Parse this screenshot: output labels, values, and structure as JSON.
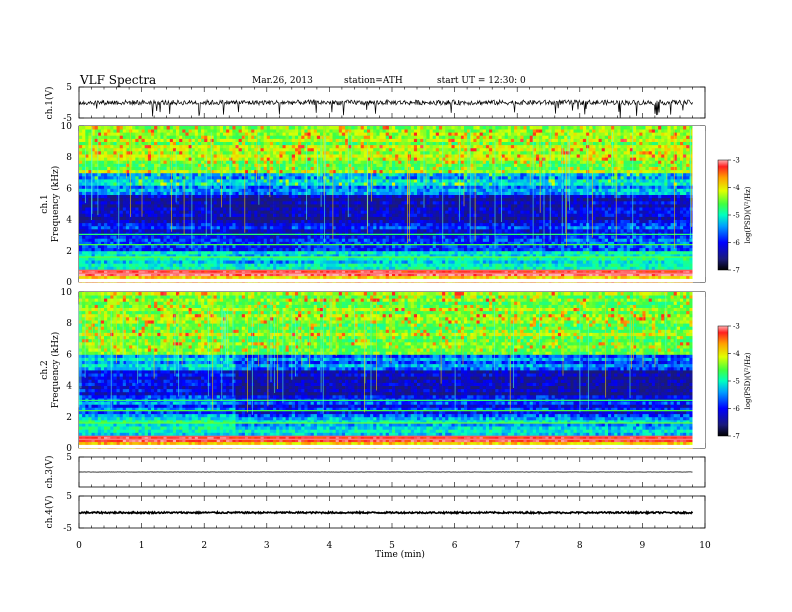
{
  "header": {
    "title": "VLF  Spectra",
    "date": "Mar.26, 2013",
    "station": "station=ATH",
    "start": "start  UT =   12:30: 0"
  },
  "colors": {
    "waveform": "#000000",
    "colormap": [
      "#1a1a7a",
      "#0000ff",
      "#00a0ff",
      "#00ffc0",
      "#40ff40",
      "#e0ff00",
      "#ffa000",
      "#ff2020",
      "#ffb0b0"
    ]
  },
  "chart_data": [
    {
      "type": "line",
      "panel": "ch1-waveform",
      "ylabel": "ch.1(V)",
      "ylim": [
        -5,
        5
      ],
      "yticks": [
        "5",
        "-5"
      ],
      "xlim": [
        0,
        10
      ],
      "trace_extent_min": 9.8,
      "baseline_v": 0.0,
      "noise_amplitude_v": 0.8
    },
    {
      "type": "heatmap",
      "panel": "ch1-spectrogram",
      "ylabel": "ch.1\nFrequency (kHz)",
      "ylabel_channel": "ch.1",
      "ylabel_quantity": "Frequency (kHz)",
      "ylim": [
        0,
        10
      ],
      "yticks": [
        "0",
        "2",
        "4",
        "6",
        "8",
        "10"
      ],
      "xlim": [
        0,
        10
      ],
      "data_extent_min": 9.8,
      "colorbar": {
        "label": "log(PSD)(V²/Hz)",
        "range": [
          -7,
          -3
        ],
        "ticks": [
          "-3",
          "-4",
          "-5",
          "-6",
          "-7"
        ]
      },
      "segments_min": [
        0,
        2.5,
        3.4,
        7.8,
        9.8
      ],
      "bands_khz": [
        {
          "from": 0.0,
          "to": 0.5,
          "log_psd": -4.2
        },
        {
          "from": 0.5,
          "to": 0.8,
          "log_psd": -3.2
        },
        {
          "from": 0.8,
          "to": 2.0,
          "log_psd": -5.6
        },
        {
          "from": 2.0,
          "to": 4.0,
          "log_psd": -6.5
        },
        {
          "from": 4.0,
          "to": 5.6,
          "log_psd": -6.8
        },
        {
          "from": 5.6,
          "to": 7.0,
          "log_psd": -5.8
        },
        {
          "from": 7.0,
          "to": 10.0,
          "log_psd": -4.8
        }
      ]
    },
    {
      "type": "heatmap",
      "panel": "ch2-spectrogram",
      "ylabel": "ch.2\nFrequency (kHz)",
      "ylabel_channel": "ch.2",
      "ylabel_quantity": "Frequency (kHz)",
      "ylim": [
        0,
        10
      ],
      "yticks": [
        "0",
        "2",
        "4",
        "6",
        "8",
        "10"
      ],
      "xlim": [
        0,
        10
      ],
      "data_extent_min": 9.8,
      "colorbar": {
        "label": "log(PSD)(V²/Hz)",
        "range": [
          -7,
          -3
        ],
        "ticks": [
          "-3",
          "-4",
          "-5",
          "-6",
          "-7"
        ]
      },
      "segments_min": [
        0,
        2.5,
        3.4,
        7.8,
        9.8
      ],
      "bands_khz": [
        {
          "from": 0.0,
          "to": 0.5,
          "log_psd": -4.2
        },
        {
          "from": 0.5,
          "to": 0.8,
          "log_psd": -3.2
        },
        {
          "from": 0.8,
          "to": 2.0,
          "log_psd": -5.6
        },
        {
          "from": 2.0,
          "to": 3.5,
          "log_psd": -6.2
        },
        {
          "from": 3.5,
          "to": 5.0,
          "log_psd": -6.7
        },
        {
          "from": 5.0,
          "to": 6.0,
          "log_psd": -6.0
        },
        {
          "from": 6.0,
          "to": 10.0,
          "log_psd": -4.8
        }
      ]
    },
    {
      "type": "line",
      "panel": "ch3-waveform",
      "ylabel": "ch.3(V)",
      "ylim": [
        -5,
        5
      ],
      "yticks": [
        "5"
      ],
      "xlim": [
        0,
        10
      ],
      "baseline_v": 0.0,
      "noise_amplitude_v": 0.05
    },
    {
      "type": "line",
      "panel": "ch4-waveform",
      "ylabel": "ch.4(V)",
      "ylim": [
        -5,
        5
      ],
      "yticks": [
        "5",
        "-5"
      ],
      "xlim": [
        0,
        10
      ],
      "baseline_v": -0.2,
      "noise_amplitude_v": 0.25
    }
  ],
  "x_axis": {
    "label": "Time  (min)",
    "ticks": [
      "0",
      "1",
      "2",
      "3",
      "4",
      "5",
      "6",
      "7",
      "8",
      "9",
      "10"
    ]
  }
}
